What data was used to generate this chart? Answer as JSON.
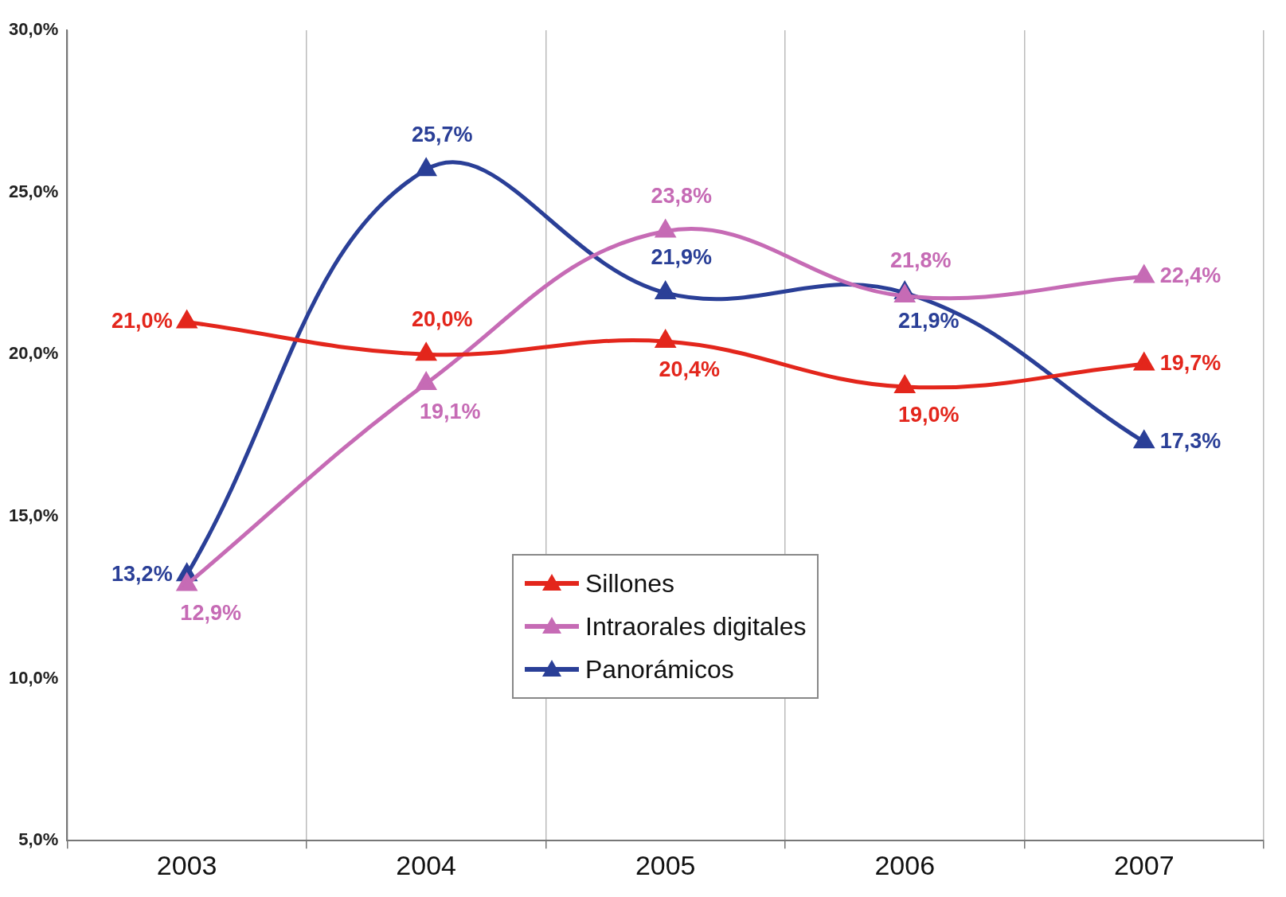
{
  "chart_data": {
    "type": "line",
    "categories": [
      "2003",
      "2004",
      "2005",
      "2006",
      "2007"
    ],
    "series": [
      {
        "name": "Sillones",
        "color": "#e3261c",
        "values": [
          21.0,
          20.0,
          20.4,
          19.0,
          19.7
        ],
        "value_labels": [
          "21,0%",
          "20,0%",
          "20,4%",
          "19,0%",
          "19,7%"
        ]
      },
      {
        "name": "Intraorales digitales",
        "color": "#c66bb5",
        "values": [
          12.9,
          19.1,
          23.8,
          21.8,
          22.4
        ],
        "value_labels": [
          "12,9%",
          "19,1%",
          "23,8%",
          "21,8%",
          "22,4%"
        ]
      },
      {
        "name": "Panorámicos",
        "color": "#2a3f97",
        "values": [
          13.2,
          25.7,
          21.9,
          21.9,
          17.3
        ],
        "value_labels": [
          "13,2%",
          "25,7%",
          "21,9%",
          "21,9%",
          "17,3%"
        ]
      }
    ],
    "ylim": [
      5,
      30
    ],
    "yticks": [
      {
        "value": 5,
        "label": "5,0%"
      },
      {
        "value": 10,
        "label": "10,0%"
      },
      {
        "value": 15,
        "label": "15,0%"
      },
      {
        "value": 20,
        "label": "20,0%"
      },
      {
        "value": 25,
        "label": "25,0%"
      },
      {
        "value": 30,
        "label": "30,0%"
      }
    ],
    "grid": "x",
    "legend": "bottom",
    "marker": "triangle",
    "line_style": "solid"
  }
}
